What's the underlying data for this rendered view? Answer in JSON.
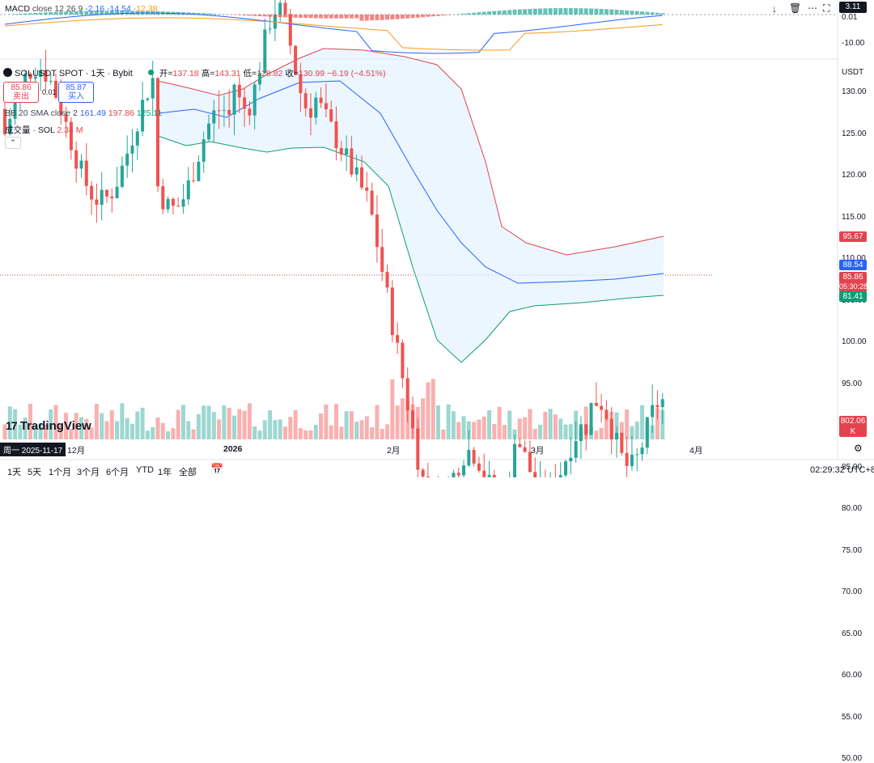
{
  "macd": {
    "label": "MACD",
    "params": "close 12 26 9",
    "v1": "-2.16",
    "v2": "-14.54",
    "v3": "-12.38",
    "axis": [
      "0.01",
      "-10.00"
    ],
    "tag": "3.11"
  },
  "symbol": {
    "name": "SOLUSDT SPOT · 1天 · Bybit",
    "open_label": "开=",
    "open": "137.18",
    "high_label": "高=",
    "high": "143.31",
    "low_label": "低=",
    "low": "128.82",
    "close_label": "收=",
    "close": "130.99",
    "change": "−6.19 (−4.51%)"
  },
  "trade": {
    "sell_price": "85.86",
    "sell_label": "卖出",
    "spread": "0.01",
    "buy_price": "85.87",
    "buy_label": "买入"
  },
  "bb": {
    "label": "BB 20 SMA close 2",
    "v1": "161.49",
    "v2": "197.86",
    "v3": "125.11"
  },
  "volume": {
    "label": "成交量 · SOL",
    "value": "2.34 M",
    "tag": "802.06 K"
  },
  "price_axis": {
    "currency": "USDT",
    "ticks": [
      "130.00",
      "125.00",
      "120.00",
      "115.00",
      "110.00",
      "105.00",
      "100.00",
      "95.00",
      "90.00",
      "85.00",
      "80.00",
      "75.00",
      "70.00",
      "65.00",
      "60.00",
      "55.00",
      "50.00"
    ]
  },
  "price_tags": {
    "upper": "95.67",
    "mid": "88.54",
    "last": "85.86",
    "countdown": "05:30:28",
    "lower": "81.41"
  },
  "x_axis": {
    "cursor_date": "周一 2025-11-17",
    "labels": [
      "12月",
      "2026",
      "2月",
      "3月",
      "4月"
    ]
  },
  "timeframes": [
    "1天",
    "5天",
    "1个月",
    "3个月",
    "6个月",
    "YTD",
    "1年",
    "全部"
  ],
  "clock": "02:29:32 UTC+8",
  "logo": "TradingView",
  "colors": {
    "up": "#26a69a",
    "down": "#ef5350",
    "bb_upper": "#e2434f",
    "bb_mid": "#2962ff",
    "bb_lower": "#0f9d77",
    "fill": "#e3f2fd"
  }
}
